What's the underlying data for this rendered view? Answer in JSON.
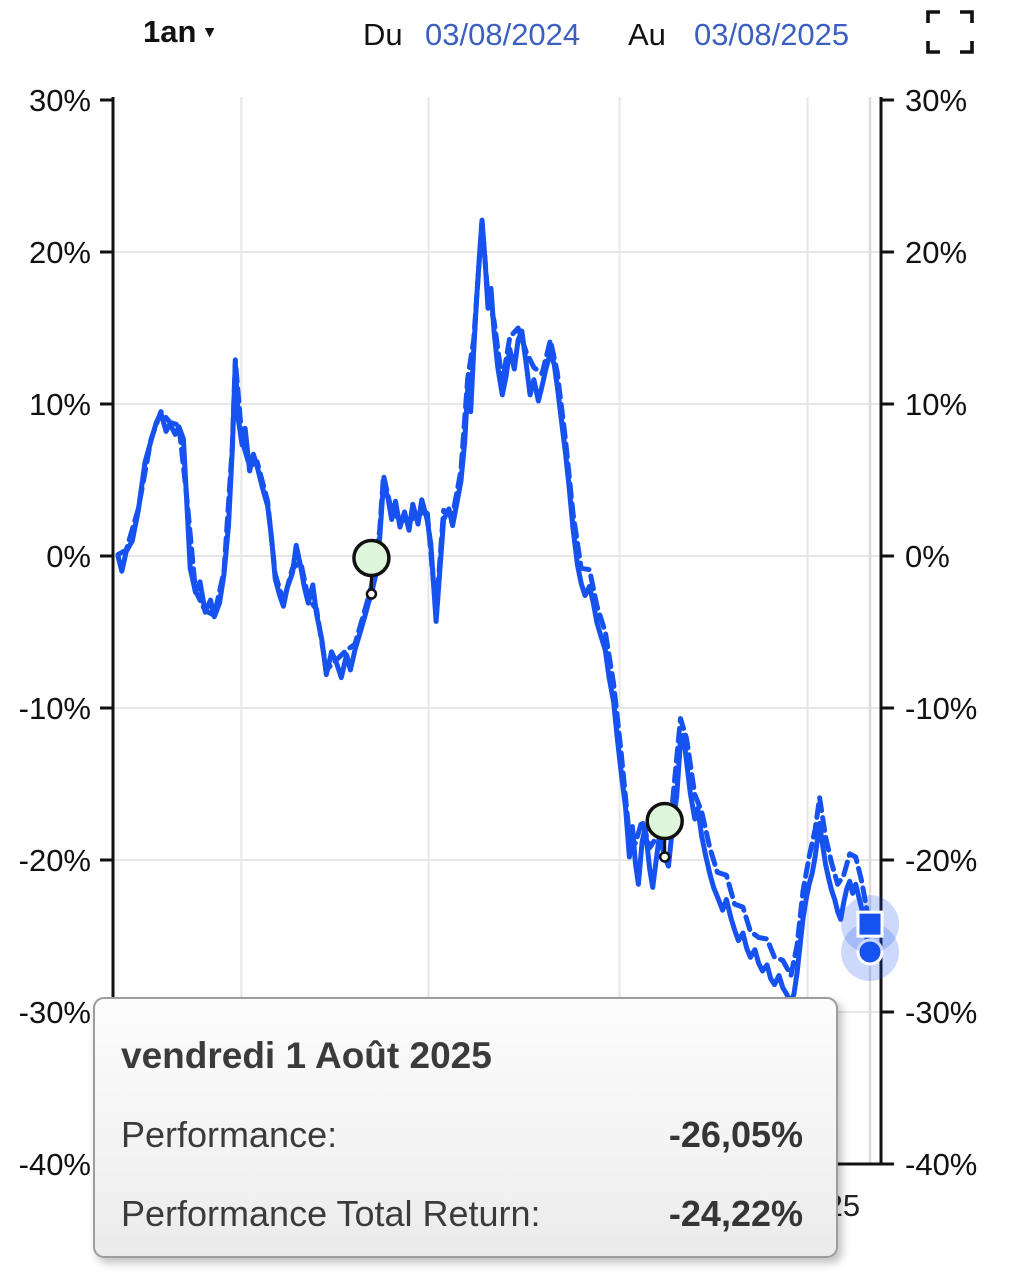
{
  "toolbar": {
    "range_label": "1an",
    "range_caret": "▾",
    "du_label": "Du",
    "from_date": "03/08/2024",
    "au_label": "Au",
    "to_date": "03/08/2025"
  },
  "tooltip": {
    "title": "vendredi 1 Août 2025",
    "rows": [
      {
        "label": "Performance:",
        "value": "-26,05%"
      },
      {
        "label": "Performance Total Return:",
        "value": "-24,22%"
      }
    ]
  },
  "chart_data": {
    "type": "line",
    "title": "",
    "xlabel": "",
    "ylabel": "",
    "x_range": [
      "03/08/2024",
      "03/08/2025"
    ],
    "ylim": [
      -40,
      30
    ],
    "yticks": [
      30,
      20,
      10,
      0,
      -10,
      -20,
      -30,
      -40
    ],
    "ytick_labels": [
      "30%",
      "20%",
      "10%",
      "0%",
      "-10%",
      "-20%",
      "-30%",
      "-40%"
    ],
    "xtick_visible": {
      "label": "25",
      "t": 0.964
    },
    "grid": true,
    "x_gridlines_t": [
      0.164,
      0.413,
      0.667,
      0.917
    ],
    "crosshair_t": 1.0,
    "legend_position": "none",
    "colors": {
      "line": "#1652f0",
      "halo": "#1652f0",
      "event_marker_fill": "#ddf6dc",
      "grid": "#e7e7e7",
      "crosshair": "#dcdcdc",
      "axis": "#111111",
      "date_link": "#3c60bf"
    },
    "event_markers": [
      {
        "t": 0.337,
        "value": -2.5
      },
      {
        "t": 0.727,
        "value": -19.8
      }
    ],
    "series": [
      {
        "name": "Performance",
        "style": "solid",
        "end_marker": "circle",
        "end_value": -26.05,
        "points": [
          [
            0.0,
            0.0
          ],
          [
            0.005,
            -1.0
          ],
          [
            0.011,
            0.3
          ],
          [
            0.019,
            1.0
          ],
          [
            0.027,
            3.0
          ],
          [
            0.036,
            6.2
          ],
          [
            0.044,
            7.6
          ],
          [
            0.051,
            8.8
          ],
          [
            0.057,
            9.4
          ],
          [
            0.064,
            8.2
          ],
          [
            0.069,
            8.7
          ],
          [
            0.076,
            8.0
          ],
          [
            0.081,
            8.5
          ],
          [
            0.087,
            7.7
          ],
          [
            0.091,
            4.0
          ],
          [
            0.096,
            -0.8
          ],
          [
            0.103,
            -2.4
          ],
          [
            0.109,
            -1.7
          ],
          [
            0.116,
            -3.7
          ],
          [
            0.123,
            -2.9
          ],
          [
            0.128,
            -4.0
          ],
          [
            0.135,
            -3.1
          ],
          [
            0.141,
            -1.2
          ],
          [
            0.147,
            2.0
          ],
          [
            0.152,
            7.0
          ],
          [
            0.156,
            12.7
          ],
          [
            0.16,
            9.0
          ],
          [
            0.165,
            7.3
          ],
          [
            0.169,
            8.4
          ],
          [
            0.175,
            5.6
          ],
          [
            0.18,
            6.7
          ],
          [
            0.185,
            5.9
          ],
          [
            0.192,
            4.5
          ],
          [
            0.199,
            3.3
          ],
          [
            0.204,
            1.3
          ],
          [
            0.209,
            -1.5
          ],
          [
            0.215,
            -2.6
          ],
          [
            0.22,
            -3.3
          ],
          [
            0.225,
            -2.1
          ],
          [
            0.232,
            -1.1
          ],
          [
            0.237,
            0.7
          ],
          [
            0.243,
            -0.7
          ],
          [
            0.248,
            -2.1
          ],
          [
            0.253,
            -3.1
          ],
          [
            0.259,
            -1.9
          ],
          [
            0.264,
            -3.8
          ],
          [
            0.271,
            -5.5
          ],
          [
            0.277,
            -7.8
          ],
          [
            0.284,
            -6.3
          ],
          [
            0.291,
            -7.1
          ],
          [
            0.297,
            -8.0
          ],
          [
            0.304,
            -6.5
          ],
          [
            0.309,
            -7.5
          ],
          [
            0.315,
            -6.2
          ],
          [
            0.321,
            -5.2
          ],
          [
            0.328,
            -4.0
          ],
          [
            0.333,
            -3.1
          ],
          [
            0.337,
            -2.5
          ],
          [
            0.343,
            -1.2
          ],
          [
            0.348,
            1.2
          ],
          [
            0.353,
            4.8
          ],
          [
            0.359,
            3.8
          ],
          [
            0.364,
            2.4
          ],
          [
            0.369,
            3.6
          ],
          [
            0.375,
            1.9
          ],
          [
            0.381,
            2.9
          ],
          [
            0.387,
            1.7
          ],
          [
            0.392,
            3.4
          ],
          [
            0.399,
            2.1
          ],
          [
            0.404,
            3.7
          ],
          [
            0.411,
            2.4
          ],
          [
            0.416,
            0.8
          ],
          [
            0.423,
            -4.3
          ],
          [
            0.428,
            -0.9
          ],
          [
            0.433,
            2.4
          ],
          [
            0.44,
            3.1
          ],
          [
            0.445,
            2.0
          ],
          [
            0.451,
            3.6
          ],
          [
            0.456,
            4.9
          ],
          [
            0.461,
            7.5
          ],
          [
            0.465,
            11.0
          ],
          [
            0.469,
            9.5
          ],
          [
            0.473,
            13.5
          ],
          [
            0.477,
            17.0
          ],
          [
            0.481,
            20.0
          ],
          [
            0.484,
            22.1
          ],
          [
            0.488,
            19.5
          ],
          [
            0.492,
            16.3
          ],
          [
            0.496,
            17.6
          ],
          [
            0.5,
            14.8
          ],
          [
            0.505,
            12.4
          ],
          [
            0.511,
            10.6
          ],
          [
            0.516,
            11.8
          ],
          [
            0.521,
            13.6
          ],
          [
            0.527,
            12.3
          ],
          [
            0.532,
            14.2
          ],
          [
            0.537,
            14.8
          ],
          [
            0.543,
            12.6
          ],
          [
            0.548,
            10.6
          ],
          [
            0.553,
            11.6
          ],
          [
            0.559,
            10.2
          ],
          [
            0.564,
            11.2
          ],
          [
            0.569,
            12.3
          ],
          [
            0.575,
            13.4
          ],
          [
            0.58,
            12.6
          ],
          [
            0.584,
            11.2
          ],
          [
            0.589,
            9.2
          ],
          [
            0.595,
            6.8
          ],
          [
            0.6,
            4.5
          ],
          [
            0.605,
            1.8
          ],
          [
            0.611,
            -0.6
          ],
          [
            0.616,
            -1.8
          ],
          [
            0.621,
            -2.6
          ],
          [
            0.627,
            -2.0
          ],
          [
            0.632,
            -3.1
          ],
          [
            0.637,
            -4.4
          ],
          [
            0.643,
            -5.4
          ],
          [
            0.648,
            -6.2
          ],
          [
            0.653,
            -8.0
          ],
          [
            0.659,
            -9.6
          ],
          [
            0.664,
            -12.0
          ],
          [
            0.669,
            -14.2
          ],
          [
            0.675,
            -16.6
          ],
          [
            0.68,
            -19.8
          ],
          [
            0.684,
            -17.8
          ],
          [
            0.688,
            -20.2
          ],
          [
            0.692,
            -21.6
          ],
          [
            0.697,
            -18.8
          ],
          [
            0.701,
            -17.9
          ],
          [
            0.707,
            -20.6
          ],
          [
            0.711,
            -21.8
          ],
          [
            0.716,
            -19.9
          ],
          [
            0.72,
            -18.4
          ],
          [
            0.727,
            -19.8
          ],
          [
            0.732,
            -20.4
          ],
          [
            0.737,
            -18.0
          ],
          [
            0.743,
            -15.8
          ],
          [
            0.748,
            -12.2
          ],
          [
            0.752,
            -11.8
          ],
          [
            0.756,
            -13.5
          ],
          [
            0.761,
            -15.6
          ],
          [
            0.767,
            -17.3
          ],
          [
            0.771,
            -16.6
          ],
          [
            0.776,
            -18.4
          ],
          [
            0.781,
            -19.6
          ],
          [
            0.787,
            -20.9
          ],
          [
            0.792,
            -21.8
          ],
          [
            0.797,
            -22.4
          ],
          [
            0.804,
            -23.3
          ],
          [
            0.809,
            -22.6
          ],
          [
            0.815,
            -23.8
          ],
          [
            0.82,
            -24.6
          ],
          [
            0.825,
            -25.3
          ],
          [
            0.831,
            -24.8
          ],
          [
            0.836,
            -25.8
          ],
          [
            0.841,
            -26.4
          ],
          [
            0.847,
            -25.9
          ],
          [
            0.852,
            -26.8
          ],
          [
            0.857,
            -27.3
          ],
          [
            0.863,
            -26.9
          ],
          [
            0.868,
            -27.8
          ],
          [
            0.873,
            -28.2
          ],
          [
            0.879,
            -27.6
          ],
          [
            0.884,
            -28.4
          ],
          [
            0.889,
            -28.8
          ],
          [
            0.895,
            -29.4
          ],
          [
            0.899,
            -28.8
          ],
          [
            0.903,
            -27.4
          ],
          [
            0.907,
            -25.6
          ],
          [
            0.911,
            -23.8
          ],
          [
            0.915,
            -22.6
          ],
          [
            0.919,
            -21.6
          ],
          [
            0.923,
            -20.9
          ],
          [
            0.927,
            -19.8
          ],
          [
            0.931,
            -18.3
          ],
          [
            0.933,
            -17.6
          ],
          [
            0.937,
            -19.0
          ],
          [
            0.941,
            -20.3
          ],
          [
            0.945,
            -21.2
          ],
          [
            0.949,
            -22.0
          ],
          [
            0.953,
            -22.6
          ],
          [
            0.957,
            -23.4
          ],
          [
            0.961,
            -23.9
          ],
          [
            0.965,
            -22.8
          ],
          [
            0.969,
            -21.9
          ],
          [
            0.973,
            -21.4
          ],
          [
            0.977,
            -22.2
          ],
          [
            0.981,
            -21.6
          ],
          [
            0.985,
            -22.4
          ],
          [
            0.989,
            -23.2
          ],
          [
            0.993,
            -24.4
          ],
          [
            0.997,
            -25.4
          ],
          [
            1.0,
            -26.05
          ]
        ]
      },
      {
        "name": "Performance Total Return",
        "style": "dashed",
        "end_marker": "square",
        "end_value": -24.22,
        "points": [
          [
            0.0,
            0.1
          ],
          [
            0.011,
            0.4
          ],
          [
            0.027,
            3.1
          ],
          [
            0.044,
            7.7
          ],
          [
            0.057,
            9.5
          ],
          [
            0.069,
            8.8
          ],
          [
            0.081,
            8.6
          ],
          [
            0.091,
            4.1
          ],
          [
            0.103,
            -2.3
          ],
          [
            0.116,
            -3.6
          ],
          [
            0.128,
            -3.9
          ],
          [
            0.141,
            -1.0
          ],
          [
            0.152,
            7.2
          ],
          [
            0.156,
            12.9
          ],
          [
            0.165,
            7.6
          ],
          [
            0.175,
            5.9
          ],
          [
            0.185,
            6.2
          ],
          [
            0.199,
            3.6
          ],
          [
            0.209,
            -1.2
          ],
          [
            0.22,
            -3.0
          ],
          [
            0.232,
            -0.8
          ],
          [
            0.243,
            -0.4
          ],
          [
            0.253,
            -2.8
          ],
          [
            0.264,
            -3.5
          ],
          [
            0.277,
            -7.5
          ],
          [
            0.291,
            -6.8
          ],
          [
            0.304,
            -6.2
          ],
          [
            0.315,
            -5.8
          ],
          [
            0.328,
            -3.6
          ],
          [
            0.337,
            -2.0
          ],
          [
            0.348,
            1.7
          ],
          [
            0.353,
            5.3
          ],
          [
            0.364,
            2.9
          ],
          [
            0.375,
            2.4
          ],
          [
            0.387,
            2.3
          ],
          [
            0.399,
            2.7
          ],
          [
            0.411,
            3.0
          ],
          [
            0.423,
            -3.7
          ],
          [
            0.433,
            3.0
          ],
          [
            0.445,
            2.7
          ],
          [
            0.456,
            5.6
          ],
          [
            0.465,
            11.7
          ],
          [
            0.473,
            14.2
          ],
          [
            0.484,
            22.0
          ],
          [
            0.492,
            17.0
          ],
          [
            0.5,
            15.5
          ],
          [
            0.511,
            11.4
          ],
          [
            0.521,
            14.4
          ],
          [
            0.532,
            15.0
          ],
          [
            0.543,
            13.4
          ],
          [
            0.553,
            12.4
          ],
          [
            0.564,
            12.0
          ],
          [
            0.575,
            14.2
          ],
          [
            0.584,
            12.1
          ],
          [
            0.595,
            7.7
          ],
          [
            0.605,
            2.8
          ],
          [
            0.616,
            -0.8
          ],
          [
            0.627,
            -0.9
          ],
          [
            0.637,
            -3.3
          ],
          [
            0.648,
            -5.0
          ],
          [
            0.659,
            -8.4
          ],
          [
            0.669,
            -12.9
          ],
          [
            0.68,
            -18.5
          ],
          [
            0.688,
            -18.9
          ],
          [
            0.697,
            -17.4
          ],
          [
            0.707,
            -19.2
          ],
          [
            0.716,
            -18.5
          ],
          [
            0.727,
            -18.2
          ],
          [
            0.737,
            -16.4
          ],
          [
            0.748,
            -10.7
          ],
          [
            0.756,
            -12.0
          ],
          [
            0.767,
            -15.7
          ],
          [
            0.776,
            -16.8
          ],
          [
            0.787,
            -19.2
          ],
          [
            0.797,
            -20.8
          ],
          [
            0.809,
            -21.0
          ],
          [
            0.82,
            -22.9
          ],
          [
            0.831,
            -23.1
          ],
          [
            0.841,
            -24.7
          ],
          [
            0.852,
            -25.1
          ],
          [
            0.863,
            -25.2
          ],
          [
            0.873,
            -26.4
          ],
          [
            0.884,
            -26.6
          ],
          [
            0.895,
            -27.6
          ],
          [
            0.903,
            -25.6
          ],
          [
            0.911,
            -22.0
          ],
          [
            0.919,
            -19.8
          ],
          [
            0.927,
            -18.0
          ],
          [
            0.933,
            -15.9
          ],
          [
            0.941,
            -18.5
          ],
          [
            0.949,
            -20.2
          ],
          [
            0.957,
            -21.6
          ],
          [
            0.965,
            -21.0
          ],
          [
            0.973,
            -19.6
          ],
          [
            0.981,
            -19.8
          ],
          [
            0.989,
            -21.4
          ],
          [
            0.997,
            -23.6
          ],
          [
            1.0,
            -24.22
          ]
        ]
      }
    ]
  }
}
